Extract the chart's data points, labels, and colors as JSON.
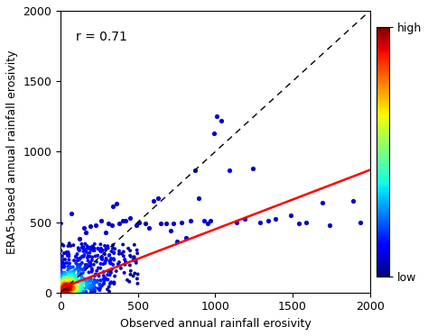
{
  "xlabel": "Observed annual rainfall erosivity",
  "ylabel": "ERA5-based annual rainfall erosivity",
  "xlim": [
    0,
    2000
  ],
  "ylim": [
    0,
    2000
  ],
  "xticks": [
    0,
    500,
    1000,
    1500,
    2000
  ],
  "yticks": [
    0,
    500,
    1000,
    1500,
    2000
  ],
  "r_value": "r = 0.71",
  "regression_line": {
    "x0": 0,
    "y0": 30,
    "x1": 2000,
    "y1": 870
  },
  "one_to_one_line": {
    "x0": 0,
    "y0": 0,
    "x1": 2000,
    "y1": 2000
  },
  "colorbar_label_high": "high",
  "colorbar_label_low": "low",
  "dense_cluster_seed": 42,
  "dense_n": 600,
  "sparse_blue_points": [
    [
      70,
      560
    ],
    [
      150,
      460
    ],
    [
      120,
      380
    ],
    [
      160,
      430
    ],
    [
      190,
      470
    ],
    [
      210,
      320
    ],
    [
      230,
      480
    ],
    [
      260,
      510
    ],
    [
      290,
      430
    ],
    [
      310,
      490
    ],
    [
      330,
      480
    ],
    [
      360,
      630
    ],
    [
      340,
      610
    ],
    [
      380,
      490
    ],
    [
      400,
      510
    ],
    [
      420,
      510
    ],
    [
      450,
      530
    ],
    [
      490,
      480
    ],
    [
      510,
      500
    ],
    [
      550,
      490
    ],
    [
      570,
      460
    ],
    [
      600,
      650
    ],
    [
      630,
      670
    ],
    [
      650,
      490
    ],
    [
      680,
      490
    ],
    [
      710,
      440
    ],
    [
      730,
      490
    ],
    [
      750,
      365
    ],
    [
      780,
      500
    ],
    [
      810,
      390
    ],
    [
      840,
      510
    ],
    [
      870,
      870
    ],
    [
      890,
      670
    ],
    [
      930,
      510
    ],
    [
      950,
      490
    ],
    [
      970,
      510
    ],
    [
      990,
      1130
    ],
    [
      1010,
      1250
    ],
    [
      1040,
      1220
    ],
    [
      1090,
      870
    ],
    [
      1140,
      500
    ],
    [
      1190,
      520
    ],
    [
      1240,
      880
    ],
    [
      1290,
      500
    ],
    [
      1340,
      510
    ],
    [
      1390,
      520
    ],
    [
      1490,
      550
    ],
    [
      1540,
      490
    ],
    [
      1590,
      500
    ],
    [
      1690,
      640
    ],
    [
      1740,
      480
    ],
    [
      1890,
      650
    ],
    [
      1940,
      500
    ]
  ]
}
